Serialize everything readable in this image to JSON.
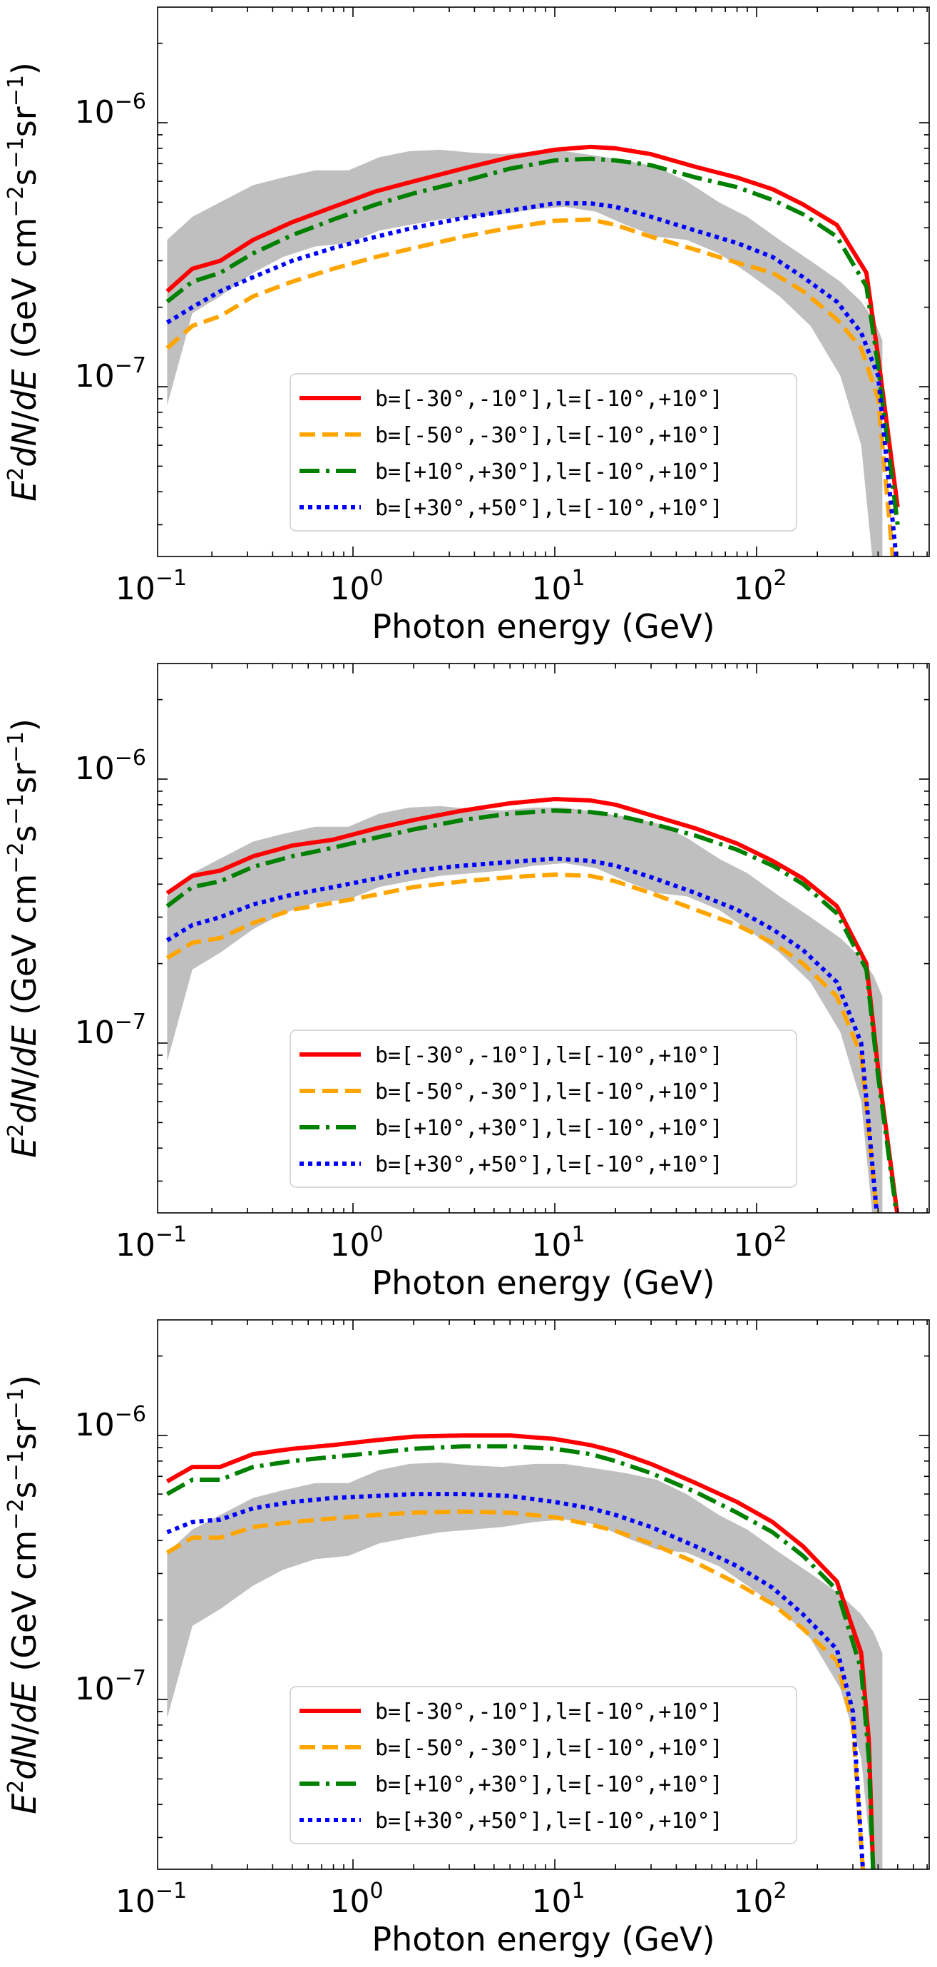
{
  "colors": {
    "band": "#bfbfbf",
    "red": "#ff0000",
    "orange": "#ffa500",
    "green": "#008000",
    "blue": "#0000ff"
  },
  "chart_data": [
    {
      "type": "line",
      "xscale": "log",
      "yscale": "log",
      "xlim": [
        0.1,
        700
      ],
      "ylim": [
        2e-08,
        2.5e-06
      ],
      "xlabel": "Photon energy (GeV)",
      "ylabel": "E^2 dN/dE (GeV cm^-2 s^-1 sr^-1)",
      "xtick_labels": [
        "10",
        "10",
        "10",
        "10"
      ],
      "xtick_exponents": [
        "−1",
        "0",
        "1",
        "2"
      ],
      "ytick_labels": [
        "10",
        "10"
      ],
      "ytick_exponents": [
        "−7",
        "−6"
      ],
      "legend_position": "lower-center",
      "band": {
        "name": "gray band",
        "x": [
          0.12,
          0.16,
          0.22,
          0.32,
          0.45,
          0.65,
          0.95,
          1.35,
          1.9,
          2.7,
          3.9,
          5.5,
          7.9,
          11.2,
          16,
          22.5,
          32,
          45,
          65,
          90,
          130,
          185,
          260,
          330,
          380,
          420
        ],
        "upper": [
          3.6e-07,
          4.4e-07,
          5e-07,
          5.8e-07,
          6.2e-07,
          6.6e-07,
          6.6e-07,
          7.4e-07,
          7.8e-07,
          7.9e-07,
          7.7e-07,
          7.6e-07,
          7.8e-07,
          7.8e-07,
          7.5e-07,
          7.2e-07,
          6.8e-07,
          6e-07,
          5e-07,
          4.4e-07,
          3.6e-07,
          3e-07,
          2.5e-07,
          2.1e-07,
          1.8e-07,
          1.5e-07
        ],
        "lower": [
          8.5e-08,
          1.9e-07,
          2.2e-07,
          2.7e-07,
          3.1e-07,
          3.4e-07,
          3.5e-07,
          3.9e-07,
          4.1e-07,
          4.3e-07,
          4.4e-07,
          4.5e-07,
          4.7e-07,
          4.8e-07,
          4.6e-07,
          4.1e-07,
          3.7e-07,
          3.6e-07,
          3.2e-07,
          2.7e-07,
          2.2e-07,
          1.7e-07,
          1.1e-07,
          6e-08,
          2e-08,
          2e-08
        ]
      },
      "series": [
        {
          "name": "b=[-30°,-10°],l=[-10°,+10°]",
          "style": "solid",
          "color": "#ff0000",
          "x": [
            0.12,
            0.16,
            0.22,
            0.32,
            0.5,
            0.8,
            1.3,
            2,
            3.5,
            6,
            10,
            15,
            20,
            30,
            50,
            80,
            120,
            170,
            250,
            350,
            400,
            500
          ],
          "values": [
            2.3e-07,
            2.8e-07,
            3e-07,
            3.6e-07,
            4.2e-07,
            4.8e-07,
            5.5e-07,
            6e-07,
            6.7e-07,
            7.4e-07,
            7.9e-07,
            8.1e-07,
            8e-07,
            7.6e-07,
            6.8e-07,
            6.2e-07,
            5.6e-07,
            4.9e-07,
            4.1e-07,
            2.7e-07,
            1.3e-07,
            3.5e-08
          ]
        },
        {
          "name": "b=[-50°,-30°],l=[-10°,+10°]",
          "style": "dashed",
          "color": "#ffa500",
          "x": [
            0.12,
            0.16,
            0.22,
            0.32,
            0.5,
            0.8,
            1.3,
            2,
            3.5,
            6,
            10,
            15,
            20,
            30,
            50,
            80,
            120,
            170,
            250,
            330,
            400,
            480
          ],
          "values": [
            1.4e-07,
            1.7e-07,
            1.85e-07,
            2.2e-07,
            2.5e-07,
            2.8e-07,
            3.1e-07,
            3.35e-07,
            3.7e-07,
            4e-07,
            4.25e-07,
            4.3e-07,
            4.1e-07,
            3.7e-07,
            3.3e-07,
            2.95e-07,
            2.7e-07,
            2.3e-07,
            1.8e-07,
            1.4e-07,
            9e-08,
            2e-08
          ]
        },
        {
          "name": "b=[+10°,+30°],l=[-10°,+10°]",
          "style": "dashdot",
          "color": "#008000",
          "x": [
            0.12,
            0.16,
            0.22,
            0.32,
            0.5,
            0.8,
            1.3,
            2,
            3.5,
            6,
            10,
            15,
            20,
            30,
            50,
            80,
            120,
            170,
            250,
            350,
            400,
            500
          ],
          "values": [
            2.1e-07,
            2.5e-07,
            2.7e-07,
            3.2e-07,
            3.75e-07,
            4.3e-07,
            4.9e-07,
            5.4e-07,
            6e-07,
            6.7e-07,
            7.2e-07,
            7.3e-07,
            7.2e-07,
            6.9e-07,
            6.2e-07,
            5.7e-07,
            5.1e-07,
            4.5e-07,
            3.7e-07,
            2.4e-07,
            1.2e-07,
            3e-08
          ]
        },
        {
          "name": "b=[+30°,+50°],l=[-10°,+10°]",
          "style": "dotted",
          "color": "#0000ff",
          "x": [
            0.12,
            0.16,
            0.22,
            0.32,
            0.5,
            0.8,
            1.3,
            2,
            3.5,
            6,
            10,
            15,
            20,
            30,
            50,
            80,
            120,
            170,
            250,
            330,
            400,
            500
          ],
          "values": [
            1.75e-07,
            2e-07,
            2.3e-07,
            2.6e-07,
            3e-07,
            3.35e-07,
            3.7e-07,
            4e-07,
            4.35e-07,
            4.65e-07,
            4.95e-07,
            4.95e-07,
            4.8e-07,
            4.4e-07,
            3.9e-07,
            3.5e-07,
            3.1e-07,
            2.6e-07,
            2.1e-07,
            1.6e-07,
            1.1e-07,
            2e-08
          ]
        }
      ]
    },
    {
      "type": "line",
      "xscale": "log",
      "yscale": "log",
      "xlim": [
        0.1,
        700
      ],
      "ylim": [
        2e-08,
        2.5e-06
      ],
      "xlabel": "Photon energy (GeV)",
      "ylabel": "E^2 dN/dE (GeV cm^-2 s^-1 sr^-1)",
      "xtick_labels": [
        "10",
        "10",
        "10",
        "10"
      ],
      "xtick_exponents": [
        "−1",
        "0",
        "1",
        "2"
      ],
      "ytick_labels": [
        "10",
        "10"
      ],
      "ytick_exponents": [
        "−7",
        "−6"
      ],
      "legend_position": "lower-center",
      "band": {
        "name": "gray band",
        "x": [
          0.12,
          0.16,
          0.22,
          0.32,
          0.45,
          0.65,
          0.95,
          1.35,
          1.9,
          2.7,
          3.9,
          5.5,
          7.9,
          11.2,
          16,
          22.5,
          32,
          45,
          65,
          90,
          130,
          185,
          260,
          330,
          380,
          420
        ],
        "upper": [
          3.6e-07,
          4.4e-07,
          5e-07,
          5.8e-07,
          6.2e-07,
          6.6e-07,
          6.6e-07,
          7.4e-07,
          7.8e-07,
          7.9e-07,
          7.7e-07,
          7.6e-07,
          7.8e-07,
          7.8e-07,
          7.5e-07,
          7.2e-07,
          6.8e-07,
          6e-07,
          5e-07,
          4.4e-07,
          3.6e-07,
          3e-07,
          2.5e-07,
          2.1e-07,
          1.8e-07,
          1.5e-07
        ],
        "lower": [
          8.5e-08,
          1.9e-07,
          2.2e-07,
          2.7e-07,
          3.1e-07,
          3.4e-07,
          3.5e-07,
          3.9e-07,
          4.1e-07,
          4.3e-07,
          4.4e-07,
          4.5e-07,
          4.7e-07,
          4.8e-07,
          4.6e-07,
          4.1e-07,
          3.7e-07,
          3.6e-07,
          3.2e-07,
          2.7e-07,
          2.2e-07,
          1.7e-07,
          1.1e-07,
          6e-08,
          2e-08,
          2e-08
        ]
      },
      "series": [
        {
          "name": "b=[-30°,-10°],l=[-10°,+10°]",
          "style": "solid",
          "color": "#ff0000",
          "x": [
            0.12,
            0.16,
            0.22,
            0.32,
            0.5,
            0.8,
            1.3,
            2,
            3.5,
            6,
            10,
            15,
            20,
            30,
            50,
            80,
            120,
            170,
            250,
            350,
            400,
            500
          ],
          "values": [
            3.7e-07,
            4.3e-07,
            4.5e-07,
            5.1e-07,
            5.6e-07,
            5.9e-07,
            6.5e-07,
            7e-07,
            7.6e-07,
            8.1e-07,
            8.4e-07,
            8.3e-07,
            8e-07,
            7.3e-07,
            6.5e-07,
            5.7e-07,
            4.9e-07,
            4.2e-07,
            3.3e-07,
            2e-07,
            8e-08,
            2.2e-08
          ]
        },
        {
          "name": "b=[-50°,-30°],l=[-10°,+10°]",
          "style": "dashed",
          "color": "#ffa500",
          "x": [
            0.12,
            0.16,
            0.22,
            0.32,
            0.5,
            0.8,
            1.3,
            2,
            3.5,
            6,
            10,
            15,
            20,
            30,
            50,
            80,
            120,
            170,
            250,
            330,
            400
          ],
          "values": [
            2.1e-07,
            2.4e-07,
            2.5e-07,
            2.85e-07,
            3.2e-07,
            3.4e-07,
            3.65e-07,
            3.9e-07,
            4.1e-07,
            4.25e-07,
            4.35e-07,
            4.3e-07,
            4.1e-07,
            3.7e-07,
            3.2e-07,
            2.8e-07,
            2.4e-07,
            2e-07,
            1.5e-07,
            9e-08,
            2e-08
          ]
        },
        {
          "name": "b=[+10°,+30°],l=[-10°,+10°]",
          "style": "dashdot",
          "color": "#008000",
          "x": [
            0.12,
            0.16,
            0.22,
            0.32,
            0.5,
            0.8,
            1.3,
            2,
            3.5,
            6,
            10,
            15,
            20,
            30,
            50,
            80,
            120,
            170,
            250,
            350,
            400,
            500
          ],
          "values": [
            3.3e-07,
            3.9e-07,
            4.1e-07,
            4.65e-07,
            5.1e-07,
            5.5e-07,
            6e-07,
            6.45e-07,
            7e-07,
            7.4e-07,
            7.6e-07,
            7.5e-07,
            7.3e-07,
            6.8e-07,
            6.1e-07,
            5.4e-07,
            4.7e-07,
            4e-07,
            3.1e-07,
            1.9e-07,
            7.5e-08,
            2.1e-08
          ]
        },
        {
          "name": "b=[+30°,+50°],l=[-10°,+10°]",
          "style": "dotted",
          "color": "#0000ff",
          "x": [
            0.12,
            0.16,
            0.22,
            0.32,
            0.5,
            0.8,
            1.3,
            2,
            3.5,
            6,
            10,
            15,
            20,
            30,
            50,
            80,
            120,
            170,
            250,
            330,
            400
          ],
          "values": [
            2.45e-07,
            2.8e-07,
            3e-07,
            3.35e-07,
            3.65e-07,
            3.9e-07,
            4.2e-07,
            4.5e-07,
            4.7e-07,
            4.85e-07,
            5e-07,
            4.9e-07,
            4.7e-07,
            4.25e-07,
            3.7e-07,
            3.2e-07,
            2.7e-07,
            2.25e-07,
            1.7e-07,
            1e-07,
            2e-08
          ]
        }
      ]
    },
    {
      "type": "line",
      "xscale": "log",
      "yscale": "log",
      "xlim": [
        0.1,
        700
      ],
      "ylim": [
        2e-08,
        2.5e-06
      ],
      "xlabel": "Photon energy (GeV)",
      "ylabel": "E^2 dN/dE (GeV cm^-2 s^-1 sr^-1)",
      "xtick_labels": [
        "10",
        "10",
        "10",
        "10"
      ],
      "xtick_exponents": [
        "−1",
        "0",
        "1",
        "2"
      ],
      "ytick_labels": [
        "10",
        "10"
      ],
      "ytick_exponents": [
        "−7",
        "−6"
      ],
      "legend_position": "lower-center",
      "band": {
        "name": "gray band",
        "x": [
          0.12,
          0.16,
          0.22,
          0.32,
          0.45,
          0.65,
          0.95,
          1.35,
          1.9,
          2.7,
          3.9,
          5.5,
          7.9,
          11.2,
          16,
          22.5,
          32,
          45,
          65,
          90,
          130,
          185,
          260,
          330,
          380,
          420
        ],
        "upper": [
          3.6e-07,
          4.4e-07,
          5e-07,
          5.8e-07,
          6.2e-07,
          6.6e-07,
          6.6e-07,
          7.4e-07,
          7.8e-07,
          7.9e-07,
          7.7e-07,
          7.6e-07,
          7.8e-07,
          7.8e-07,
          7.5e-07,
          7.2e-07,
          6.8e-07,
          6e-07,
          5e-07,
          4.4e-07,
          3.6e-07,
          3e-07,
          2.5e-07,
          2.1e-07,
          1.8e-07,
          1.5e-07
        ],
        "lower": [
          8.5e-08,
          1.9e-07,
          2.2e-07,
          2.7e-07,
          3.1e-07,
          3.4e-07,
          3.5e-07,
          3.9e-07,
          4.1e-07,
          4.3e-07,
          4.4e-07,
          4.5e-07,
          4.7e-07,
          4.8e-07,
          4.6e-07,
          4.1e-07,
          3.7e-07,
          3.6e-07,
          3.2e-07,
          2.7e-07,
          2.2e-07,
          1.7e-07,
          1.1e-07,
          6e-08,
          2e-08,
          2e-08
        ]
      },
      "series": [
        {
          "name": "b=[-30°,-10°],l=[-10°,+10°]",
          "style": "solid",
          "color": "#ff0000",
          "x": [
            0.12,
            0.16,
            0.22,
            0.32,
            0.5,
            0.8,
            1.3,
            2,
            3.5,
            6,
            10,
            15,
            20,
            30,
            50,
            80,
            120,
            170,
            250,
            330,
            360,
            380
          ],
          "values": [
            6.7e-07,
            7.6e-07,
            7.6e-07,
            8.5e-07,
            8.9e-07,
            9.2e-07,
            9.6e-07,
            9.9e-07,
            1e-06,
            1e-06,
            9.7e-07,
            9.2e-07,
            8.7e-07,
            7.8e-07,
            6.6e-07,
            5.6e-07,
            4.7e-07,
            3.8e-07,
            2.8e-07,
            1.5e-07,
            7e-08,
            2e-08
          ]
        },
        {
          "name": "b=[-50°,-30°],l=[-10°,+10°]",
          "style": "dashed",
          "color": "#ffa500",
          "x": [
            0.12,
            0.16,
            0.22,
            0.32,
            0.5,
            0.8,
            1.3,
            2,
            3.5,
            6,
            10,
            15,
            20,
            30,
            50,
            80,
            120,
            170,
            250,
            300,
            340
          ],
          "values": [
            3.6e-07,
            4.1e-07,
            4.1e-07,
            4.5e-07,
            4.7e-07,
            4.85e-07,
            5e-07,
            5.1e-07,
            5.15e-07,
            5.1e-07,
            4.9e-07,
            4.6e-07,
            4.35e-07,
            3.9e-07,
            3.3e-07,
            2.75e-07,
            2.3e-07,
            1.85e-07,
            1.4e-07,
            8e-08,
            2e-08
          ]
        },
        {
          "name": "b=[+10°,+30°],l=[-10°,+10°]",
          "style": "dashdot",
          "color": "#008000",
          "x": [
            0.12,
            0.16,
            0.22,
            0.32,
            0.5,
            0.8,
            1.3,
            2,
            3.5,
            6,
            10,
            15,
            20,
            30,
            50,
            80,
            120,
            170,
            250,
            330,
            360,
            380
          ],
          "values": [
            6e-07,
            6.8e-07,
            6.8e-07,
            7.6e-07,
            8e-07,
            8.3e-07,
            8.6e-07,
            8.9e-07,
            9.1e-07,
            9.1e-07,
            8.9e-07,
            8.5e-07,
            8e-07,
            7.2e-07,
            6.1e-07,
            5.1e-07,
            4.3e-07,
            3.5e-07,
            2.6e-07,
            1.3e-07,
            6e-08,
            2e-08
          ]
        },
        {
          "name": "b=[+30°,+50°],l=[-10°,+10°]",
          "style": "dotted",
          "color": "#0000ff",
          "x": [
            0.12,
            0.16,
            0.22,
            0.32,
            0.5,
            0.8,
            1.3,
            2,
            3.5,
            6,
            10,
            15,
            20,
            30,
            50,
            80,
            120,
            170,
            250,
            300,
            340
          ],
          "values": [
            4.3e-07,
            4.7e-07,
            4.8e-07,
            5.3e-07,
            5.6e-07,
            5.8e-07,
            5.9e-07,
            6e-07,
            6e-07,
            5.9e-07,
            5.6e-07,
            5.3e-07,
            5e-07,
            4.5e-07,
            3.8e-07,
            3.2e-07,
            2.65e-07,
            2.1e-07,
            1.55e-07,
            9e-08,
            2e-08
          ]
        }
      ]
    }
  ]
}
